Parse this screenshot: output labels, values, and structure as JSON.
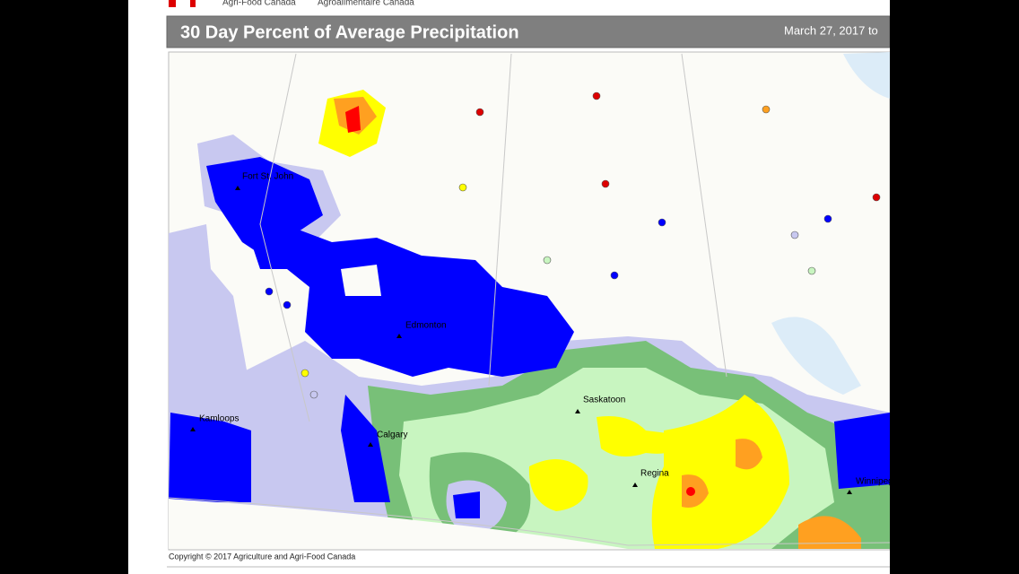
{
  "header": {
    "agency_en": "Agri-Food Canada",
    "agency_fr": "Agroalimentaire Canada",
    "title": "30 Day Percent of Average Precipitation",
    "date": "March 27, 2017 to"
  },
  "map": {
    "cities": [
      {
        "label": "Fort St. John"
      },
      {
        "label": "Edmonton"
      },
      {
        "label": "Saskatoon"
      },
      {
        "label": "Calgary"
      },
      {
        "label": "Regina"
      },
      {
        "label": "Kamloops"
      },
      {
        "label": "Winnipeg"
      }
    ],
    "copyright": "Copyright © 2017 Agriculture and Agri-Food Canada"
  }
}
